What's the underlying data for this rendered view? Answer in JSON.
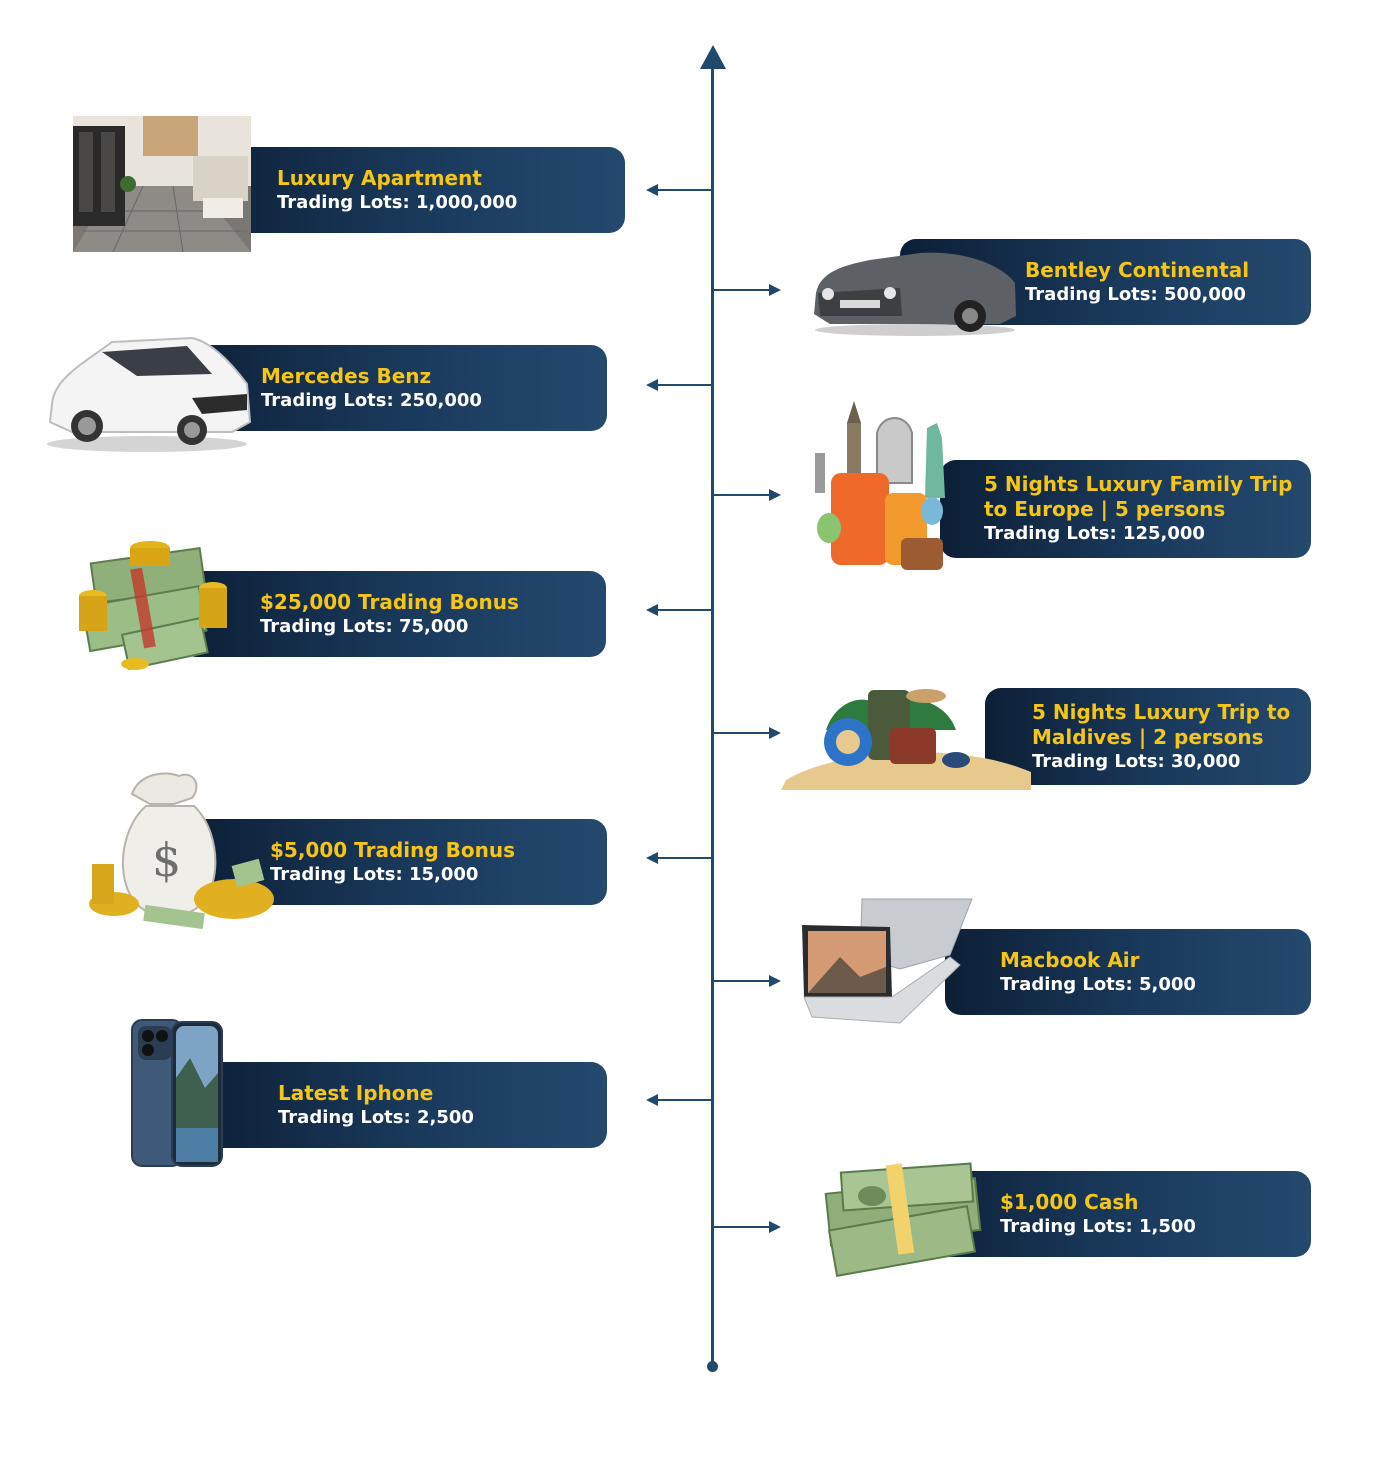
{
  "prizes_left": [
    {
      "title": "Luxury Apartment",
      "lots": "Trading Lots: 1,000,000",
      "icon": "apartment-image"
    },
    {
      "title": "Mercedes Benz",
      "lots": "Trading Lots: 250,000",
      "icon": "car-image"
    },
    {
      "title": "$25,000 Trading Bonus",
      "lots": "Trading Lots: 75,000",
      "icon": "money-coins-image"
    },
    {
      "title": "$5,000 Trading Bonus",
      "lots": "Trading Lots: 15,000",
      "icon": "money-bag-image"
    },
    {
      "title": "Latest Iphone",
      "lots": "Trading Lots: 2,500",
      "icon": "iphone-image"
    }
  ],
  "prizes_right": [
    {
      "title": "Bentley Continental",
      "lots": "Trading Lots: 500,000",
      "icon": "convertible-car-image"
    },
    {
      "title": "5 Nights Luxury Family Trip",
      "title2": "to Europe | 5 persons",
      "lots": "Trading Lots: 125,000",
      "icon": "europe-luggage-image"
    },
    {
      "title": "5 Nights Luxury Trip to",
      "title2": "Maldives | 2 persons",
      "lots": "Trading Lots: 30,000",
      "icon": "beach-luggage-image"
    },
    {
      "title": "Macbook Air",
      "lots": "Trading Lots: 5,000",
      "icon": "laptop-image"
    },
    {
      "title": "$1,000 Cash",
      "lots": "Trading Lots: 1,500",
      "icon": "cash-stack-image"
    }
  ],
  "colors": {
    "card_dark": "#0c1f36",
    "card_light": "#24496e",
    "title": "#f5c518",
    "axis": "#1f4a6e"
  }
}
